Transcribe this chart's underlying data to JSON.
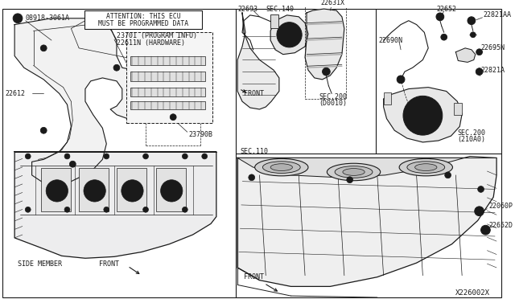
{
  "background_color": "#ffffff",
  "line_color": "#1a1a1a",
  "diagram_number": "X226002X",
  "labels": {
    "n08918": "N08918-3061A",
    "attention1": "ATTENTION: THIS ECU",
    "attention2": "MUST BE PROGRAMMED DATA",
    "l23701": "23701 (PROGRAM INFO)",
    "l22611": "22611N (HARDWARE)",
    "l22612": "22612",
    "l23790b": "23790B",
    "side_member": "SIDE MEMBER",
    "front_bl": "FRONT",
    "l22693": "22693",
    "sec140": "SEC.140",
    "l22631x": "22631X",
    "sec200_d": "SEC.200",
    "d0010": "(D0010)",
    "front_tm": "FRONT",
    "l22821aa": "22821AA",
    "l22652": "22652",
    "l22690n": "22690N",
    "l22695n": "22695N",
    "l22821a": "22821A",
    "sec200_2": "SEC.200",
    "c210a0": "(210A0)",
    "sec110": "SEC.110",
    "l22060p": "22060P",
    "l22652d": "22652D",
    "front_br": "FRONT"
  },
  "fontsize": 6.0,
  "gray_light": "#e8e8e8",
  "gray_mid": "#cccccc",
  "gray_dark": "#999999"
}
